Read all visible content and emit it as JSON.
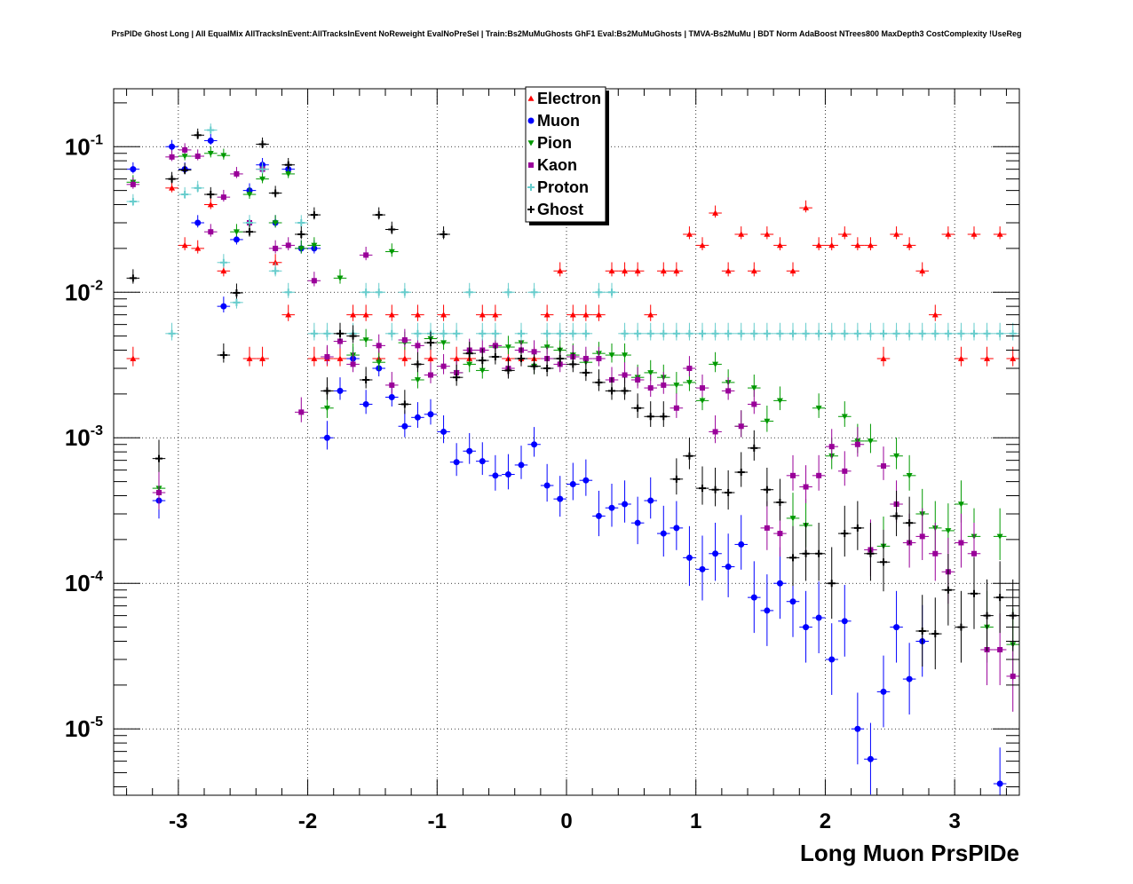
{
  "title": "PrsPIDe Ghost Long | All EqualMix AllTracksInEvent:AllTracksInEvent NoReweight EvalNoPreSel | Train:Bs2MuMuGhosts GhF1 Eval:Bs2MuMuGhosts | TMVA-Bs2MuMu | BDT Norm AdaBoost NTrees800 MaxDepth3 CostComplexity !UseReg",
  "chart_data": {
    "type": "scatter",
    "xlabel": "Long Muon PrsPIDe",
    "ylabel": "",
    "xlim": [
      -3.5,
      3.5
    ],
    "ylim": [
      3.5e-06,
      0.25
    ],
    "log_y": true,
    "grid": true,
    "legend_position": "top-center",
    "x_ticks": [
      "-3",
      "-2",
      "-1",
      "0",
      "1",
      "2",
      "3"
    ],
    "y_ticks": [
      {
        "base": "10",
        "exp": "-5"
      },
      {
        "base": "10",
        "exp": "-4"
      },
      {
        "base": "10",
        "exp": "-3"
      },
      {
        "base": "10",
        "exp": "-2"
      },
      {
        "base": "10",
        "exp": "-1"
      }
    ],
    "series": [
      {
        "name": "Electron",
        "color": "#ff0000",
        "marker": "triangle-up",
        "x": [
          -3.35,
          -3.05,
          -2.95,
          -2.85,
          -2.75,
          -2.65,
          -2.45,
          -2.35,
          -2.25,
          -2.15,
          -1.95,
          -1.85,
          -1.75,
          -1.65,
          -1.55,
          -1.45,
          -1.35,
          -1.25,
          -1.15,
          -1.05,
          -0.95,
          -0.85,
          -0.75,
          -0.65,
          -0.55,
          -0.45,
          -0.35,
          -0.25,
          -0.15,
          -0.05,
          0.05,
          0.15,
          0.25,
          0.35,
          0.45,
          0.55,
          0.65,
          0.75,
          0.85,
          0.95,
          1.05,
          1.15,
          1.25,
          1.35,
          1.45,
          1.55,
          1.65,
          1.75,
          1.85,
          1.95,
          2.05,
          2.15,
          2.25,
          2.35,
          2.45,
          2.55,
          2.65,
          2.75,
          2.85,
          2.95,
          3.05,
          3.15,
          3.25,
          3.35,
          3.45
        ],
        "y": [
          0.0035,
          0.052,
          0.021,
          0.02,
          0.04,
          0.014,
          0.0035,
          0.0035,
          0.016,
          0.007,
          0.0035,
          0.0035,
          0.0035,
          0.007,
          0.007,
          0.0035,
          0.007,
          0.0035,
          0.007,
          0.0035,
          0.007,
          0.0035,
          0.0035,
          0.007,
          0.007,
          0.0035,
          0.0035,
          0.0035,
          0.007,
          0.014,
          0.007,
          0.007,
          0.007,
          0.014,
          0.014,
          0.014,
          0.007,
          0.014,
          0.014,
          0.025,
          0.021,
          0.035,
          0.014,
          0.025,
          0.014,
          0.025,
          0.021,
          0.014,
          0.038,
          0.021,
          0.021,
          0.025,
          0.021,
          0.021,
          0.0035,
          0.025,
          0.021,
          0.014,
          0.007,
          0.025,
          0.0035,
          0.025,
          0.0035,
          0.025,
          0.0035
        ]
      },
      {
        "name": "Muon",
        "color": "#0000ff",
        "marker": "circle",
        "x": [
          -3.35,
          -3.15,
          -3.05,
          -2.95,
          -2.85,
          -2.75,
          -2.65,
          -2.55,
          -2.45,
          -2.35,
          -2.25,
          -2.15,
          -2.05,
          -1.95,
          -1.85,
          -1.75,
          -1.65,
          -1.55,
          -1.45,
          -1.35,
          -1.25,
          -1.15,
          -1.05,
          -0.95,
          -0.85,
          -0.75,
          -0.65,
          -0.55,
          -0.45,
          -0.35,
          -0.25,
          -0.15,
          -0.05,
          0.05,
          0.15,
          0.25,
          0.35,
          0.45,
          0.55,
          0.65,
          0.75,
          0.85,
          0.95,
          1.05,
          1.15,
          1.25,
          1.35,
          1.45,
          1.55,
          1.65,
          1.75,
          1.85,
          1.95,
          2.05,
          2.15,
          2.25,
          2.35,
          2.45,
          2.55,
          2.65,
          2.75,
          3.35
        ],
        "y": [
          0.07,
          0.00037,
          0.1,
          0.07,
          0.03,
          0.11,
          0.008,
          0.023,
          0.05,
          0.075,
          0.03,
          0.07,
          0.02,
          0.02,
          0.001,
          0.0021,
          0.0035,
          0.0017,
          0.003,
          0.0019,
          0.0012,
          0.00138,
          0.00145,
          0.0011,
          0.00068,
          0.00081,
          0.00069,
          0.00055,
          0.00056,
          0.00065,
          0.0009,
          0.00047,
          0.00038,
          0.00048,
          0.00051,
          0.00029,
          0.00033,
          0.00035,
          0.00026,
          0.00037,
          0.00022,
          0.00024,
          0.00015,
          0.000125,
          0.00016,
          0.00013,
          0.000185,
          8e-05,
          6.5e-05,
          0.0001,
          7.5e-05,
          5e-05,
          5.8e-05,
          3e-05,
          5.5e-05,
          1e-05,
          6.2e-06,
          1.8e-05,
          5e-05,
          2.2e-05,
          4e-05,
          4.2e-06
        ]
      },
      {
        "name": "Pion",
        "color": "#009900",
        "marker": "triangle-down",
        "x": [
          -3.35,
          -3.15,
          -2.95,
          -2.75,
          -2.65,
          -2.55,
          -2.45,
          -2.35,
          -2.25,
          -2.15,
          -2.05,
          -1.95,
          -1.85,
          -1.75,
          -1.65,
          -1.55,
          -1.45,
          -1.35,
          -1.25,
          -1.15,
          -1.05,
          -0.95,
          -0.85,
          -0.75,
          -0.65,
          -0.55,
          -0.45,
          -0.35,
          -0.25,
          -0.15,
          -0.05,
          0.05,
          0.15,
          0.25,
          0.35,
          0.45,
          0.55,
          0.65,
          0.75,
          0.85,
          0.95,
          1.05,
          1.15,
          1.25,
          1.35,
          1.45,
          1.55,
          1.65,
          1.75,
          1.85,
          1.95,
          2.05,
          2.15,
          2.25,
          2.35,
          2.45,
          2.55,
          2.65,
          2.75,
          2.85,
          2.95,
          3.05,
          3.15,
          3.25,
          3.35,
          3.45
        ],
        "y": [
          0.057,
          0.00045,
          0.086,
          0.09,
          0.087,
          0.026,
          0.047,
          0.06,
          0.03,
          0.065,
          0.02,
          0.021,
          0.0016,
          0.0125,
          0.0037,
          0.0047,
          0.0033,
          0.019,
          0.0045,
          0.0025,
          0.0048,
          0.0045,
          0.0028,
          0.0032,
          0.0029,
          0.0042,
          0.0042,
          0.0045,
          0.0031,
          0.0042,
          0.004,
          0.0037,
          0.0033,
          0.0038,
          0.0037,
          0.0037,
          0.0026,
          0.0028,
          0.0026,
          0.0023,
          0.0024,
          0.0018,
          0.0032,
          0.0024,
          0.0012,
          0.0022,
          0.0013,
          0.0018,
          0.00028,
          0.00025,
          0.0016,
          0.00075,
          0.0014,
          0.00095,
          0.00095,
          0.00018,
          0.00075,
          0.00055,
          0.0003,
          0.00024,
          0.00023,
          0.00035,
          0.00021,
          5e-05,
          0.00021,
          3.8e-05
        ]
      },
      {
        "name": "Kaon",
        "color": "#990099",
        "marker": "square",
        "x": [
          -3.35,
          -3.15,
          -3.05,
          -2.95,
          -2.85,
          -2.75,
          -2.65,
          -2.55,
          -2.45,
          -2.35,
          -2.25,
          -2.15,
          -2.05,
          -1.95,
          -1.85,
          -1.75,
          -1.65,
          -1.55,
          -1.45,
          -1.35,
          -1.25,
          -1.15,
          -1.05,
          -0.95,
          -0.85,
          -0.75,
          -0.65,
          -0.55,
          -0.45,
          -0.35,
          -0.25,
          -0.15,
          -0.05,
          0.05,
          0.15,
          0.25,
          0.35,
          0.45,
          0.55,
          0.65,
          0.75,
          0.85,
          0.95,
          1.05,
          1.15,
          1.25,
          1.35,
          1.45,
          1.55,
          1.65,
          1.75,
          1.85,
          1.95,
          2.05,
          2.15,
          2.25,
          2.35,
          2.45,
          2.55,
          2.65,
          2.75,
          2.85,
          2.95,
          3.05,
          3.15,
          3.25,
          3.35,
          3.45
        ],
        "y": [
          0.055,
          0.00042,
          0.085,
          0.095,
          0.086,
          0.026,
          0.045,
          0.065,
          0.03,
          0.07,
          0.02,
          0.021,
          0.0015,
          0.012,
          0.0036,
          0.0046,
          0.0032,
          0.018,
          0.0043,
          0.0023,
          0.0047,
          0.0043,
          0.0027,
          0.0031,
          0.0028,
          0.004,
          0.004,
          0.0043,
          0.003,
          0.004,
          0.0039,
          0.0035,
          0.0032,
          0.0036,
          0.0035,
          0.0035,
          0.0025,
          0.0027,
          0.0025,
          0.0022,
          0.0023,
          0.0016,
          0.003,
          0.0022,
          0.0011,
          0.0021,
          0.0012,
          0.0017,
          0.00024,
          0.00022,
          0.00055,
          0.00046,
          0.00055,
          0.00087,
          0.00059,
          0.0009,
          0.00017,
          0.00064,
          0.00035,
          0.00019,
          0.00021,
          0.00016,
          0.00012,
          0.00019,
          0.00016,
          3.5e-05,
          3.5e-05,
          2.3e-05
        ]
      },
      {
        "name": "Proton",
        "color": "#66cccc",
        "marker": "cross",
        "x": [
          -3.35,
          -3.05,
          -2.95,
          -2.85,
          -2.75,
          -2.65,
          -2.55,
          -2.45,
          -2.35,
          -2.25,
          -2.15,
          -2.05,
          -1.95,
          -1.85,
          -1.75,
          -1.65,
          -1.55,
          -1.45,
          -1.35,
          -1.25,
          -1.15,
          -1.05,
          -0.95,
          -0.85,
          -0.75,
          -0.65,
          -0.55,
          -0.45,
          -0.35,
          -0.25,
          -0.15,
          -0.05,
          0.05,
          0.15,
          0.25,
          0.35,
          0.45,
          0.55,
          0.65,
          0.75,
          0.85,
          0.95,
          1.05,
          1.15,
          1.25,
          1.35,
          1.45,
          1.55,
          1.65,
          1.75,
          1.85,
          1.95,
          2.05,
          2.15,
          2.25,
          2.35,
          2.45,
          2.55,
          2.65,
          2.75,
          2.85,
          2.95,
          3.05,
          3.15,
          3.25,
          3.35,
          3.45
        ],
        "y": [
          0.042,
          0.0052,
          0.047,
          0.052,
          0.13,
          0.016,
          0.0085,
          0.03,
          0.07,
          0.014,
          0.01,
          0.03,
          0.0052,
          0.0052,
          0.0052,
          0.0052,
          0.01,
          0.01,
          0.0052,
          0.01,
          0.0052,
          0.0052,
          0.0052,
          0.0052,
          0.01,
          0.0052,
          0.0052,
          0.01,
          0.0052,
          0.01,
          0.0052,
          0.0052,
          0.0052,
          0.0052,
          0.01,
          0.01,
          0.0052,
          0.0052,
          0.0052,
          0.0052,
          0.0052,
          0.0052,
          0.0052,
          0.0052,
          0.0052,
          0.0052,
          0.0052,
          0.0052,
          0.0052,
          0.0052,
          0.0052,
          0.0052,
          0.0052,
          0.0052,
          0.0052,
          0.0052,
          0.0052,
          0.0052,
          0.0052,
          0.0052,
          0.0052,
          0.0052,
          0.0052,
          0.0052,
          0.0052,
          0.0052,
          0.0052
        ]
      },
      {
        "name": "Ghost",
        "color": "#000000",
        "marker": "cross",
        "x": [
          -3.35,
          -3.15,
          -3.05,
          -2.95,
          -2.85,
          -2.75,
          -2.65,
          -2.55,
          -2.45,
          -2.35,
          -2.25,
          -2.15,
          -2.05,
          -1.95,
          -1.85,
          -1.75,
          -1.65,
          -1.55,
          -1.45,
          -1.35,
          -1.25,
          -1.15,
          -1.05,
          -0.95,
          -0.85,
          -0.75,
          -0.65,
          -0.55,
          -0.45,
          -0.35,
          -0.25,
          -0.15,
          -0.05,
          0.05,
          0.15,
          0.25,
          0.35,
          0.45,
          0.55,
          0.65,
          0.75,
          0.85,
          0.95,
          1.05,
          1.15,
          1.25,
          1.35,
          1.45,
          1.55,
          1.65,
          1.75,
          1.85,
          1.95,
          2.05,
          2.15,
          2.25,
          2.35,
          2.45,
          2.55,
          2.65,
          2.75,
          2.85,
          2.95,
          3.05,
          3.15,
          3.25,
          3.35,
          3.45
        ],
        "y": [
          0.0125,
          0.00072,
          0.06,
          0.069,
          0.12,
          0.047,
          0.0037,
          0.0099,
          0.026,
          0.104,
          0.048,
          0.075,
          0.025,
          0.034,
          0.0021,
          0.0052,
          0.005,
          0.0025,
          0.034,
          0.027,
          0.0017,
          0.0032,
          0.0045,
          0.025,
          0.0026,
          0.0038,
          0.0034,
          0.0036,
          0.0029,
          0.0035,
          0.0031,
          0.003,
          0.0035,
          0.0032,
          0.0028,
          0.0024,
          0.0021,
          0.0021,
          0.0016,
          0.0014,
          0.0014,
          0.00052,
          0.00075,
          0.00045,
          0.00044,
          0.00042,
          0.00058,
          0.00085,
          0.00044,
          0.00036,
          0.00015,
          0.00016,
          0.00016,
          0.0001,
          0.00022,
          0.00024,
          0.00016,
          0.00014,
          0.00029,
          0.00026,
          4.7e-05,
          4.5e-05,
          9e-05,
          5e-05,
          8.5e-05,
          6e-05,
          8e-05,
          6e-05
        ]
      }
    ]
  }
}
